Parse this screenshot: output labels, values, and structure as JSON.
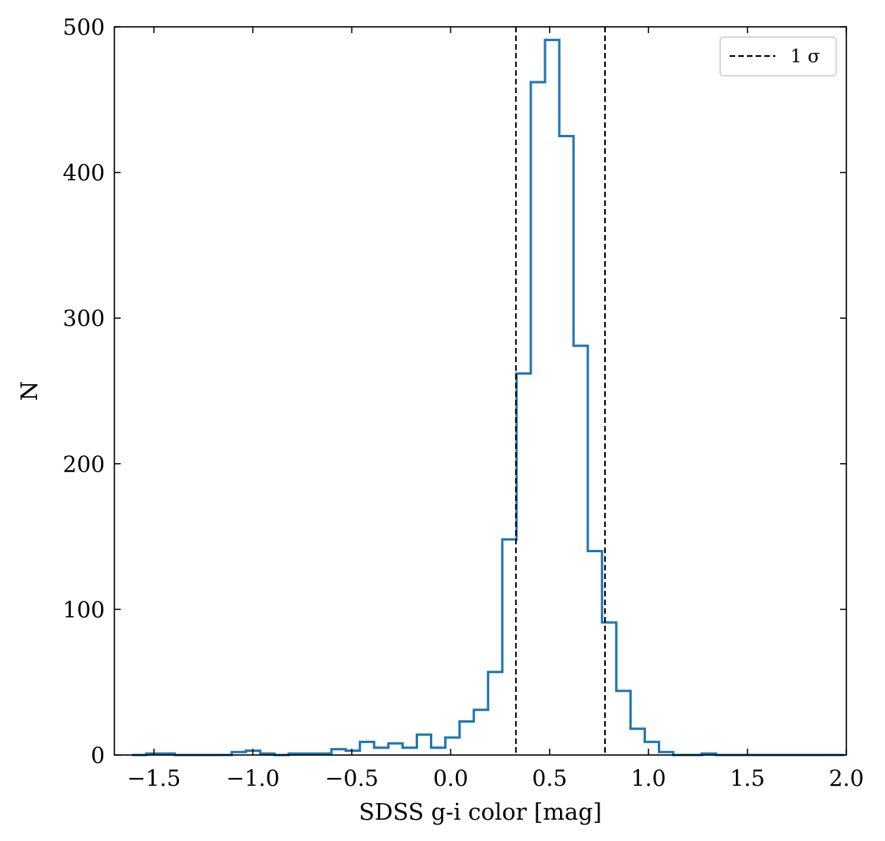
{
  "chart_data": {
    "type": "histogram",
    "title": "",
    "xlabel": "SDSS g-i color [mag]",
    "ylabel": "N",
    "xlim": [
      -1.7,
      2.0
    ],
    "ylim": [
      0,
      500
    ],
    "xticks": [
      -1.5,
      -1.0,
      -0.5,
      0.0,
      0.5,
      1.0,
      1.5,
      2.0
    ],
    "xtick_labels": [
      "−1.5",
      "−1.0",
      "−0.5",
      "0.0",
      "0.5",
      "1.0",
      "1.5",
      "2.0"
    ],
    "yticks": [
      0,
      100,
      200,
      300,
      400,
      500
    ],
    "ytick_labels": [
      "0",
      "100",
      "200",
      "300",
      "400",
      "500"
    ],
    "grid": false,
    "legend_position": "top-right",
    "bin_edges": [
      -1.611,
      -1.539,
      -1.467,
      -1.395,
      -1.323,
      -1.251,
      -1.179,
      -1.107,
      -1.035,
      -0.963,
      -0.891,
      -0.819,
      -0.747,
      -0.675,
      -0.603,
      -0.531,
      -0.459,
      -0.387,
      -0.315,
      -0.243,
      -0.171,
      -0.099,
      -0.027,
      0.045,
      0.117,
      0.189,
      0.261,
      0.333,
      0.405,
      0.477,
      0.549,
      0.621,
      0.693,
      0.765,
      0.837,
      0.909,
      0.981,
      1.053,
      1.125,
      1.197,
      1.269,
      1.341,
      1.413,
      1.485,
      1.557,
      1.629,
      1.701,
      1.773,
      1.845,
      1.917,
      1.989
    ],
    "counts": [
      0,
      1,
      1,
      0,
      0,
      0,
      0,
      2,
      3,
      1,
      0,
      1,
      1,
      1,
      4,
      3,
      9,
      5,
      8,
      5,
      14,
      5,
      12,
      23,
      31,
      57,
      148,
      262,
      462,
      491,
      425,
      281,
      140,
      91,
      44,
      18,
      9,
      2,
      0,
      0,
      1,
      0,
      0,
      0,
      0,
      0,
      0,
      0,
      0,
      0
    ],
    "series": [
      {
        "name": "",
        "color": "#1f77b4"
      }
    ],
    "reference_lines": [
      {
        "x": 0.33,
        "style": "dashed",
        "color": "#000000",
        "label": "1 σ"
      },
      {
        "x": 0.78,
        "style": "dashed",
        "color": "#000000"
      }
    ],
    "legend": [
      {
        "label": "1 σ",
        "style": "dashed",
        "color": "#000000"
      }
    ]
  }
}
